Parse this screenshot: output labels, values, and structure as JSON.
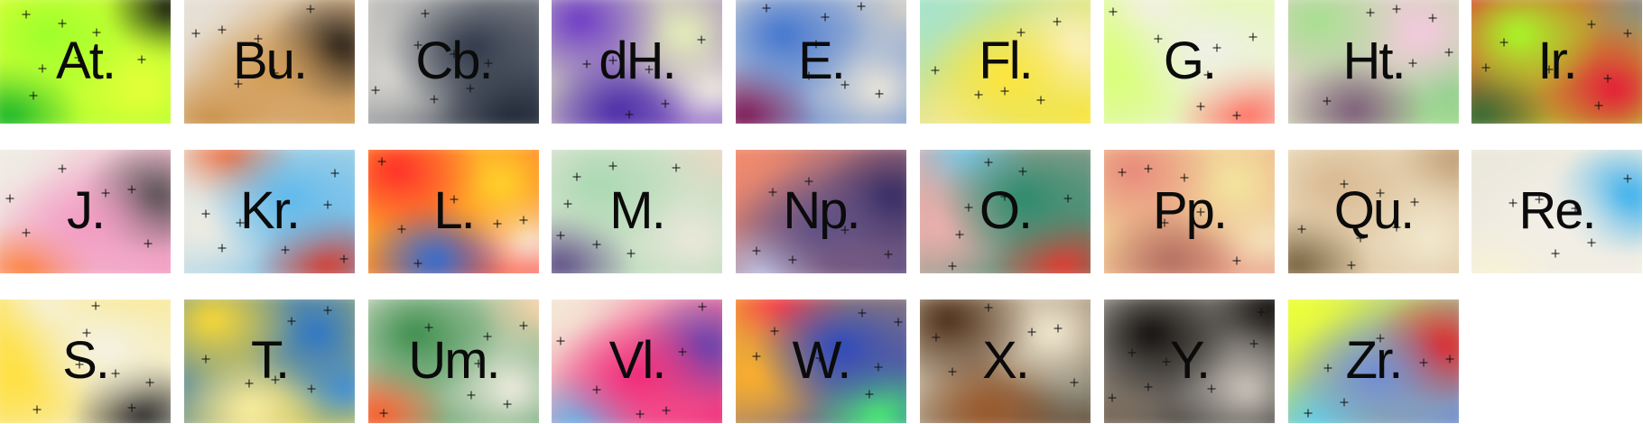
{
  "tiles": [
    {
      "label": "At.",
      "palette": [
        "#9cff2a",
        "#e8ff3a",
        "#16b52a",
        "#101010"
      ]
    },
    {
      "label": "Bu.",
      "palette": [
        "#d29a52",
        "#e6e1d8",
        "#17120f",
        "#c98d43"
      ]
    },
    {
      "label": "Cb.",
      "palette": [
        "#2e3748",
        "#d9d7d2",
        "#232a38",
        "#b8b8b6"
      ]
    },
    {
      "label": "dH.",
      "palette": [
        "#6b36c7",
        "#e8f2b9",
        "#4a2aa8",
        "#f3f0e4"
      ]
    },
    {
      "label": "E.",
      "palette": [
        "#3f73cf",
        "#efe8d8",
        "#7d1350",
        "#d9d4c8"
      ]
    },
    {
      "label": "Fl.",
      "palette": [
        "#ffe53a",
        "#a8e3c9",
        "#fff2c8",
        "#f6e88f"
      ]
    },
    {
      "label": "G.",
      "palette": [
        "#f0f0ea",
        "#d9ff7a",
        "#ff6f62",
        "#f4f0e6"
      ]
    },
    {
      "label": "Ht.",
      "palette": [
        "#a5e08d",
        "#f4c9de",
        "#7b5a78",
        "#8fd08c"
      ]
    },
    {
      "label": "Ir.",
      "palette": [
        "#a6ff28",
        "#e8143a",
        "#2f6c34",
        "#8a8a8a"
      ]
    },
    {
      "label": "J.",
      "palette": [
        "#f39ac2",
        "#f0ece4",
        "#464646",
        "#ff7a2a"
      ]
    },
    {
      "label": "Kr.",
      "palette": [
        "#5db8ec",
        "#f2ede2",
        "#d63a2e",
        "#f26b3a"
      ]
    },
    {
      "label": "L.",
      "palette": [
        "#ff2a2a",
        "#ffd62a",
        "#2a6cd8",
        "#f5efe4"
      ]
    },
    {
      "label": "M.",
      "palette": [
        "#a8d8b0",
        "#ede8dc",
        "#5c4c86",
        "#e9d9c4"
      ]
    },
    {
      "label": "Np.",
      "palette": [
        "#5a4f86",
        "#f08a6e",
        "#2e2760",
        "#c0c7e8"
      ]
    },
    {
      "label": "O.",
      "palette": [
        "#2a8a6c",
        "#f0b0ae",
        "#e6392e",
        "#7ac8e8"
      ]
    },
    {
      "label": "Pp.",
      "palette": [
        "#e8877a",
        "#f4e7a0",
        "#b36e60",
        "#f4e6c0"
      ]
    },
    {
      "label": "Qu.",
      "palette": [
        "#d8b890",
        "#f2ead0",
        "#75603c",
        "#c09f77"
      ]
    },
    {
      "label": "Re.",
      "palette": [
        "#f3efe6",
        "#ebe8dc",
        "#24a8ee",
        "#f8f3d4"
      ]
    },
    {
      "label": "S.",
      "palette": [
        "#f4f2e8",
        "#ffe040",
        "#2a2a2a",
        "#f6f1d6"
      ]
    },
    {
      "label": "T.",
      "palette": [
        "#ffdb30",
        "#2a74c8",
        "#fff0a0",
        "#3e8fdc"
      ]
    },
    {
      "label": "Um.",
      "palette": [
        "#3a8c4a",
        "#f2ede2",
        "#ff5a28",
        "#ffd7b0"
      ]
    },
    {
      "label": "Vl.",
      "palette": [
        "#f02878",
        "#f4e7d6",
        "#5840b0",
        "#5eb8ee"
      ]
    },
    {
      "label": "W.",
      "palette": [
        "#2a48c0",
        "#ffb02a",
        "#4af070",
        "#ff3a4a"
      ]
    },
    {
      "label": "X.",
      "palette": [
        "#4a2a14",
        "#f4ecd4",
        "#9a5828",
        "#8a8a7a"
      ]
    },
    {
      "label": "Y.",
      "palette": [
        "#0e0c0a",
        "#cfc9c0",
        "#7a6a5a",
        "#151210"
      ]
    },
    {
      "label": "Zr.",
      "palette": [
        "#6e8ad8",
        "#ecff3a",
        "#e61e1e",
        "#5fd0ec"
      ]
    }
  ]
}
